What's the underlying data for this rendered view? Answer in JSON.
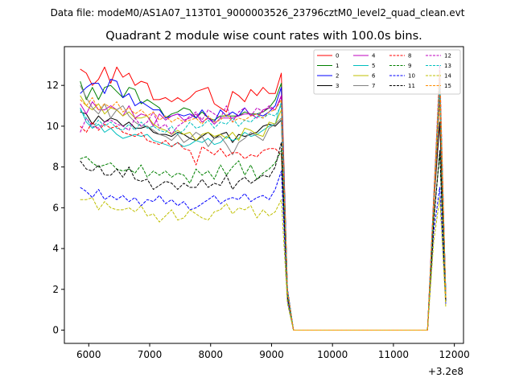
{
  "chart_data": {
    "type": "line",
    "suptitle": "Data file: modeM0/AS1A07_113T01_9000003526_23796cztM0_level2_quad_clean.evt",
    "title": "Quadrant 2 module wise count rates with 100.0s bins.",
    "xlabel": "",
    "ylabel": "",
    "x_offset_label": "+3.2e8",
    "xlim": [
      5600,
      12150
    ],
    "ylim": [
      -0.65,
      13.9
    ],
    "xticks": [
      6000,
      7000,
      8000,
      9000,
      10000,
      11000,
      12000
    ],
    "yticks": [
      0,
      2,
      4,
      6,
      8,
      10,
      12
    ],
    "legend_placement": "top-right",
    "grid": false,
    "x": [
      5860,
      5960,
      6060,
      6160,
      6260,
      6360,
      6460,
      6560,
      6660,
      6760,
      6860,
      6960,
      7060,
      7160,
      7260,
      7360,
      7460,
      7560,
      7660,
      7760,
      7860,
      7960,
      8060,
      8160,
      8260,
      8360,
      8460,
      8560,
      8660,
      8760,
      8860,
      8960,
      9060,
      9160,
      9260,
      9360,
      9460,
      9560,
      9660,
      9760,
      9860,
      9960,
      10060,
      10160,
      10260,
      10360,
      10460,
      10560,
      10660,
      10760,
      10860,
      10960,
      11060,
      11160,
      11260,
      11360,
      11460,
      11560,
      11660,
      11760,
      11860
    ],
    "series": [
      {
        "name": "0",
        "color": "#ff0000",
        "dash": "solid",
        "values": [
          12.8,
          12.6,
          12.0,
          12.3,
          12.9,
          12.1,
          12.9,
          12.4,
          12.6,
          12.0,
          12.2,
          12.1,
          11.3,
          11.3,
          11.4,
          11.2,
          11.4,
          11.2,
          11.4,
          11.7,
          11.8,
          11.9,
          11.1,
          10.9,
          10.7,
          11.7,
          11.5,
          11.2,
          11.8,
          11.5,
          11.9,
          11.6,
          11.6,
          12.6,
          2.0,
          0,
          0,
          0,
          0,
          0,
          0,
          0,
          0,
          0,
          0,
          0,
          0,
          0,
          0,
          0,
          0,
          0,
          0,
          0,
          0,
          0,
          0,
          0,
          6.5,
          12.2,
          1.7
        ]
      },
      {
        "name": "1",
        "color": "#008000",
        "dash": "solid",
        "values": [
          12.2,
          11.3,
          11.9,
          11.3,
          11.9,
          12.0,
          11.7,
          11.4,
          11.9,
          11.8,
          11.1,
          11.3,
          11.1,
          10.9,
          10.4,
          10.6,
          10.7,
          10.9,
          10.8,
          10.4,
          10.7,
          10.4,
          10.3,
          10.5,
          10.5,
          10.5,
          10.5,
          10.7,
          10.6,
          10.6,
          10.7,
          10.9,
          11.3,
          12.1,
          2.0,
          0,
          0,
          0,
          0,
          0,
          0,
          0,
          0,
          0,
          0,
          0,
          0,
          0,
          0,
          0,
          0,
          0,
          0,
          0,
          0,
          0,
          0,
          0,
          6.0,
          12.0,
          1.7
        ]
      },
      {
        "name": "2",
        "color": "#0000ff",
        "dash": "solid",
        "values": [
          11.6,
          11.9,
          12.1,
          12.1,
          11.6,
          12.3,
          12.2,
          11.4,
          11.6,
          11.0,
          11.2,
          11.0,
          10.8,
          10.8,
          10.4,
          10.5,
          10.6,
          10.5,
          10.6,
          10.4,
          10.8,
          10.4,
          10.2,
          10.8,
          10.5,
          10.7,
          10.5,
          10.9,
          10.5,
          10.6,
          10.5,
          10.7,
          11.0,
          11.9,
          2.0,
          0,
          0,
          0,
          0,
          0,
          0,
          0,
          0,
          0,
          0,
          0,
          0,
          0,
          0,
          0,
          0,
          0,
          0,
          0,
          0,
          0,
          0,
          0,
          6.2,
          12.2,
          1.7
        ]
      },
      {
        "name": "3",
        "color": "#000000",
        "dash": "solid",
        "values": [
          10.7,
          10.6,
          10.1,
          10.5,
          10.2,
          10.4,
          10.3,
          10.0,
          10.2,
          9.9,
          9.9,
          10.0,
          9.7,
          9.6,
          9.6,
          9.5,
          9.7,
          9.6,
          9.4,
          9.3,
          9.5,
          9.7,
          9.4,
          9.6,
          9.7,
          9.2,
          9.6,
          9.5,
          9.6,
          9.7,
          10.0,
          10.1,
          10.0,
          10.3,
          1.9,
          0,
          0,
          0,
          0,
          0,
          0,
          0,
          0,
          0,
          0,
          0,
          0,
          0,
          0,
          0,
          0,
          0,
          0,
          0,
          0,
          0,
          0,
          0,
          6.1,
          10.2,
          1.6
        ]
      },
      {
        "name": "4",
        "color": "#bf00bf",
        "dash": "solid",
        "values": [
          11.1,
          10.6,
          11.2,
          10.8,
          10.8,
          11.0,
          10.8,
          10.5,
          11.0,
          10.4,
          10.6,
          10.5,
          10.0,
          10.6,
          10.3,
          10.5,
          10.6,
          10.3,
          10.4,
          10.6,
          10.2,
          10.4,
          10.1,
          10.4,
          10.4,
          10.4,
          10.5,
          10.6,
          10.6,
          10.4,
          10.8,
          10.9,
          10.8,
          11.5,
          1.9,
          0,
          0,
          0,
          0,
          0,
          0,
          0,
          0,
          0,
          0,
          0,
          0,
          0,
          0,
          0,
          0,
          0,
          0,
          0,
          0,
          0,
          0,
          0,
          6.3,
          11.5,
          1.6
        ]
      },
      {
        "name": "5",
        "color": "#00bfbf",
        "dash": "solid",
        "values": [
          10.9,
          10.2,
          9.9,
          10.1,
          9.7,
          9.9,
          9.6,
          9.4,
          9.5,
          9.6,
          9.5,
          9.6,
          9.3,
          9.2,
          9.1,
          9.0,
          9.2,
          9.0,
          9.1,
          9.3,
          9.2,
          9.4,
          9.1,
          9.2,
          9.5,
          9.3,
          9.4,
          9.7,
          9.5,
          9.6,
          9.8,
          10.0,
          10.1,
          11.2,
          1.9,
          0,
          0,
          0,
          0,
          0,
          0,
          0,
          0,
          0,
          0,
          0,
          0,
          0,
          0,
          0,
          0,
          0,
          0,
          0,
          0,
          0,
          0,
          0,
          6.0,
          11.6,
          1.6
        ]
      },
      {
        "name": "6",
        "color": "#bfbf00",
        "dash": "solid",
        "values": [
          11.5,
          11.0,
          10.8,
          11.1,
          10.6,
          10.9,
          10.8,
          10.5,
          10.7,
          10.4,
          10.4,
          10.5,
          10.1,
          9.9,
          9.8,
          9.6,
          9.8,
          9.6,
          9.7,
          9.3,
          9.6,
          9.7,
          9.5,
          9.6,
          9.4,
          9.7,
          9.3,
          9.9,
          9.8,
          9.6,
          9.5,
          10.2,
          10.1,
          10.8,
          1.9,
          0,
          0,
          0,
          0,
          0,
          0,
          0,
          0,
          0,
          0,
          0,
          0,
          0,
          0,
          0,
          0,
          0,
          0,
          0,
          0,
          0,
          0,
          0,
          6.1,
          11.3,
          1.6
        ]
      },
      {
        "name": "7",
        "color": "#808080",
        "dash": "solid",
        "values": [
          12.0,
          11.4,
          10.9,
          10.6,
          11.1,
          10.4,
          10.8,
          11.0,
          10.5,
          10.2,
          10.0,
          10.0,
          9.8,
          9.6,
          9.5,
          9.3,
          9.6,
          9.2,
          9.4,
          9.7,
          9.5,
          9.0,
          9.4,
          9.5,
          9.1,
          8.6,
          9.2,
          9.4,
          9.7,
          9.5,
          9.3,
          9.9,
          10.1,
          10.4,
          1.9,
          0,
          0,
          0,
          0,
          0,
          0,
          0,
          0,
          0,
          0,
          0,
          0,
          0,
          0,
          0,
          0,
          0,
          0,
          0,
          0,
          0,
          0,
          0,
          6.4,
          12.6,
          1.7
        ]
      },
      {
        "name": "8",
        "color": "#ff0000",
        "dash": "dashed",
        "values": [
          10.0,
          9.7,
          10.2,
          9.8,
          10.1,
          9.9,
          10.0,
          9.7,
          9.6,
          9.5,
          9.7,
          9.3,
          9.2,
          9.1,
          9.3,
          9.0,
          9.2,
          8.9,
          8.8,
          8.1,
          9.0,
          8.8,
          8.6,
          8.9,
          8.5,
          8.7,
          8.7,
          8.4,
          8.6,
          8.5,
          8.8,
          8.9,
          8.9,
          8.6,
          1.7,
          0,
          0,
          0,
          0,
          0,
          0,
          0,
          0,
          0,
          0,
          0,
          0,
          0,
          0,
          0,
          0,
          0,
          0,
          0,
          0,
          0,
          0,
          0,
          5.7,
          11.5,
          1.4
        ]
      },
      {
        "name": "9",
        "color": "#008000",
        "dash": "dashed",
        "values": [
          8.4,
          8.5,
          8.2,
          8.0,
          8.1,
          8.2,
          7.9,
          7.8,
          7.9,
          7.7,
          8.1,
          7.5,
          7.8,
          7.6,
          7.8,
          7.5,
          7.7,
          7.6,
          7.2,
          7.9,
          7.6,
          7.8,
          7.4,
          8.1,
          7.6,
          8.0,
          8.3,
          7.6,
          8.1,
          7.4,
          7.7,
          7.9,
          8.2,
          8.8,
          1.6,
          0,
          0,
          0,
          0,
          0,
          0,
          0,
          0,
          0,
          0,
          0,
          0,
          0,
          0,
          0,
          0,
          0,
          0,
          0,
          0,
          0,
          0,
          0,
          5.4,
          8.7,
          1.4
        ]
      },
      {
        "name": "10",
        "color": "#0000ff",
        "dash": "dashed",
        "values": [
          7.0,
          6.8,
          6.5,
          6.9,
          6.4,
          6.6,
          6.4,
          6.6,
          6.3,
          6.5,
          6.1,
          6.4,
          6.3,
          6.6,
          6.2,
          6.4,
          6.1,
          6.3,
          5.9,
          6.0,
          6.2,
          6.4,
          6.6,
          6.2,
          6.4,
          6.5,
          6.4,
          6.7,
          6.3,
          6.5,
          6.6,
          6.4,
          6.9,
          7.8,
          1.5,
          0,
          0,
          0,
          0,
          0,
          0,
          0,
          0,
          0,
          0,
          0,
          0,
          0,
          0,
          0,
          0,
          0,
          0,
          0,
          0,
          0,
          0,
          0,
          4.8,
          7.0,
          1.3
        ]
      },
      {
        "name": "11",
        "color": "#000000",
        "dash": "dashed",
        "values": [
          8.3,
          7.9,
          7.8,
          8.1,
          7.6,
          7.6,
          7.9,
          7.5,
          8.0,
          7.4,
          7.3,
          7.4,
          6.9,
          7.1,
          7.3,
          7.2,
          6.9,
          7.2,
          7.0,
          7.0,
          7.4,
          7.0,
          7.2,
          7.1,
          7.6,
          6.9,
          7.3,
          7.5,
          7.2,
          7.4,
          7.6,
          7.5,
          8.0,
          9.2,
          1.7,
          0,
          0,
          0,
          0,
          0,
          0,
          0,
          0,
          0,
          0,
          0,
          0,
          0,
          0,
          0,
          0,
          0,
          0,
          0,
          0,
          0,
          0,
          0,
          5.2,
          8.8,
          1.4
        ]
      },
      {
        "name": "12",
        "color": "#bf00bf",
        "dash": "dashed",
        "values": [
          9.7,
          10.4,
          10.0,
          9.9,
          10.2,
          10.3,
          10.1,
          10.0,
          9.8,
          10.4,
          10.0,
          10.2,
          10.7,
          9.9,
          10.1,
          9.6,
          10.0,
          10.2,
          10.5,
          10.7,
          10.3,
          10.8,
          10.6,
          10.4,
          11.0,
          10.2,
          10.7,
          10.9,
          10.5,
          10.9,
          10.7,
          11.0,
          10.8,
          11.4,
          1.9,
          0,
          0,
          0,
          0,
          0,
          0,
          0,
          0,
          0,
          0,
          0,
          0,
          0,
          0,
          0,
          0,
          0,
          0,
          0,
          0,
          0,
          0,
          0,
          6.4,
          13.0,
          1.6
        ]
      },
      {
        "name": "13",
        "color": "#00bfbf",
        "dash": "dashed",
        "values": [
          10.8,
          10.4,
          9.9,
          10.3,
          10.0,
          10.2,
          9.9,
          9.8,
          10.1,
          9.8,
          10.2,
          9.9,
          10.0,
          9.8,
          9.7,
          10.0,
          9.6,
          9.8,
          10.2,
          9.9,
          10.0,
          10.3,
          9.9,
          10.2,
          10.1,
          10.4,
          10.0,
          10.3,
          10.2,
          10.5,
          10.4,
          10.6,
          10.5,
          11.0,
          1.9,
          0,
          0,
          0,
          0,
          0,
          0,
          0,
          0,
          0,
          0,
          0,
          0,
          0,
          0,
          0,
          0,
          0,
          0,
          0,
          0,
          0,
          0,
          0,
          6.2,
          12.0,
          1.6
        ]
      },
      {
        "name": "14",
        "color": "#bfbf00",
        "dash": "dashed",
        "values": [
          6.4,
          6.4,
          6.5,
          5.9,
          6.3,
          6.0,
          5.9,
          5.9,
          6.0,
          5.8,
          6.1,
          5.6,
          5.7,
          5.3,
          5.6,
          5.9,
          5.4,
          5.5,
          5.9,
          5.7,
          5.5,
          5.4,
          5.8,
          5.9,
          6.2,
          5.7,
          6.0,
          5.9,
          6.1,
          5.5,
          5.9,
          5.6,
          5.8,
          6.4,
          1.3,
          0,
          0,
          0,
          0,
          0,
          0,
          0,
          0,
          0,
          0,
          0,
          0,
          0,
          0,
          0,
          0,
          0,
          0,
          0,
          0,
          0,
          0,
          0,
          4.3,
          6.5,
          1.1
        ]
      },
      {
        "name": "15",
        "color": "#ff8c00",
        "dash": "dashed",
        "values": [
          11.3,
          11.0,
          11.4,
          10.8,
          11.1,
          10.9,
          11.2,
          10.7,
          10.9,
          10.6,
          10.8,
          10.5,
          10.7,
          10.3,
          10.5,
          10.2,
          10.4,
          10.2,
          10.3,
          10.4,
          10.1,
          10.5,
          10.2,
          10.3,
          10.6,
          10.2,
          10.4,
          10.3,
          10.5,
          10.6,
          10.4,
          10.7,
          10.8,
          11.3,
          1.9,
          0,
          0,
          0,
          0,
          0,
          0,
          0,
          0,
          0,
          0,
          0,
          0,
          0,
          0,
          0,
          0,
          0,
          0,
          0,
          0,
          0,
          0,
          0,
          6.3,
          12.7,
          1.6
        ]
      }
    ]
  }
}
